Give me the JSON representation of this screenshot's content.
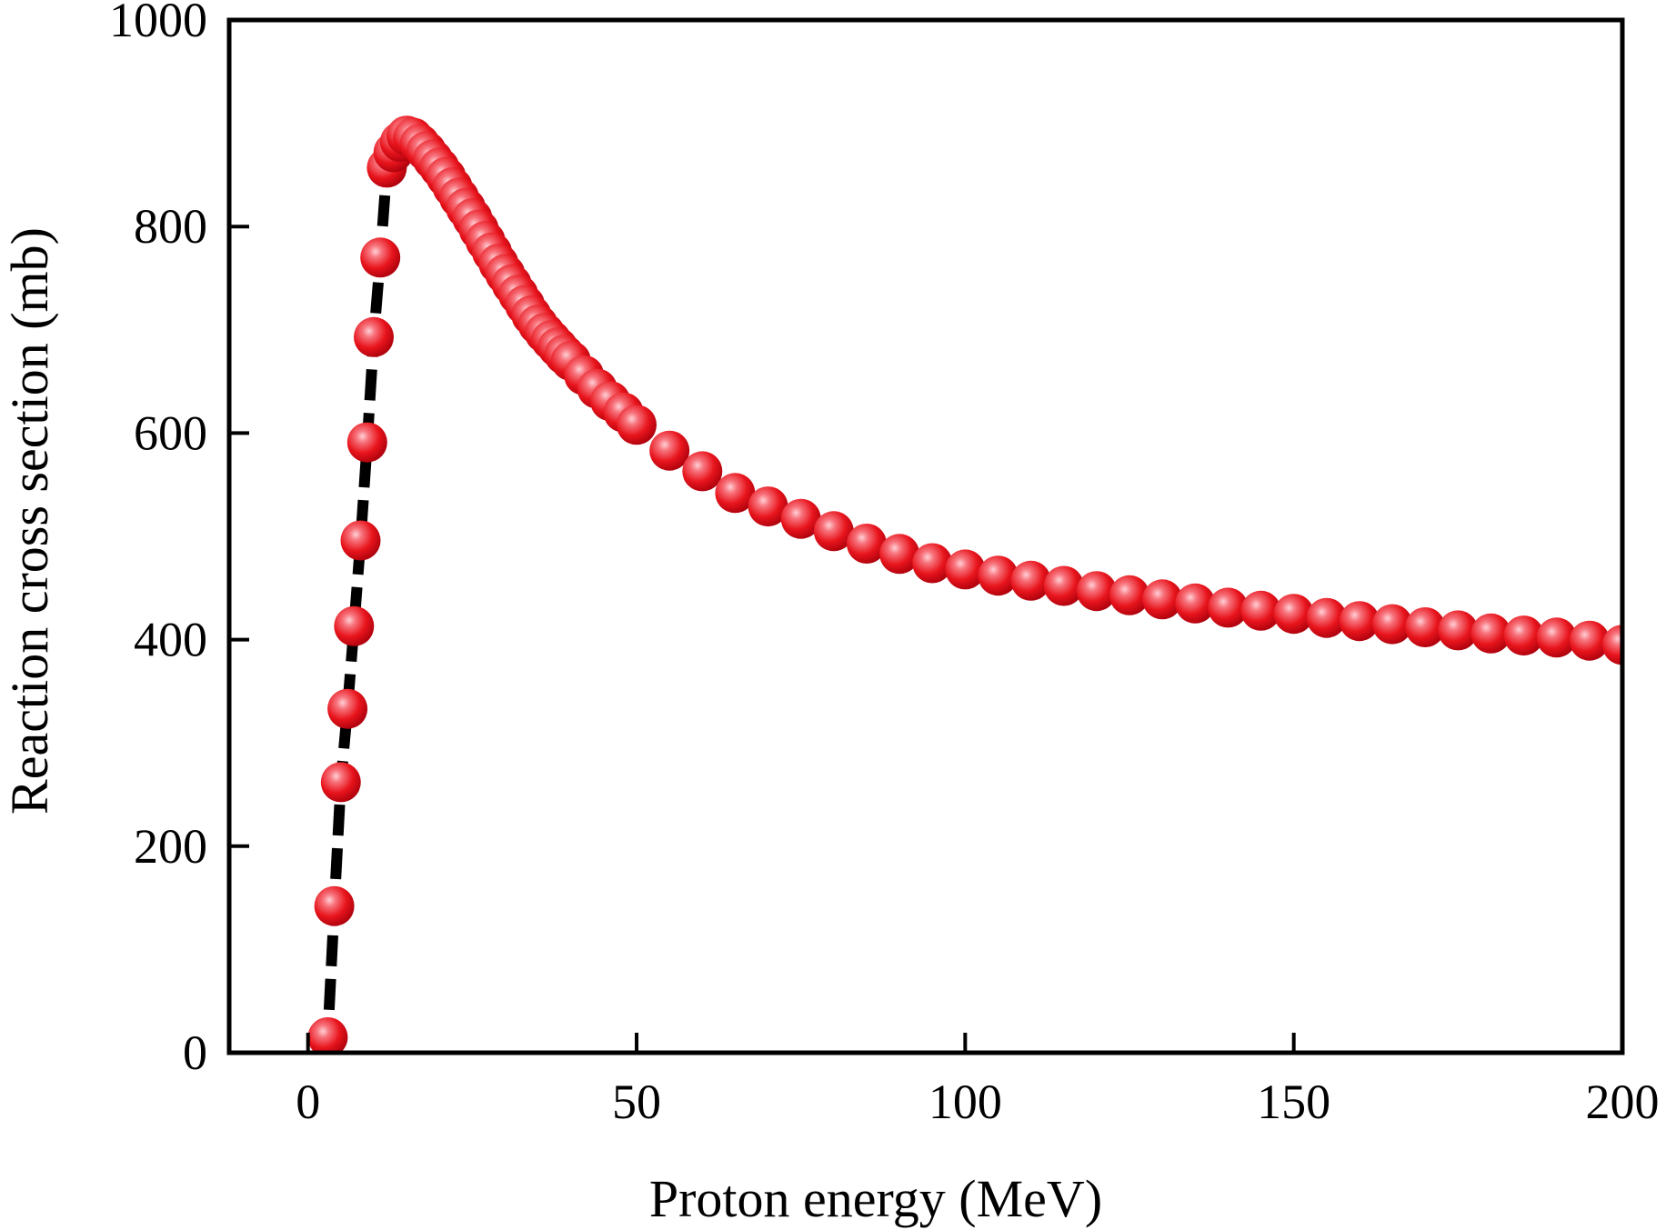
{
  "chart_data": {
    "type": "scatter",
    "title": "",
    "xlabel": "Proton energy (MeV)",
    "ylabel": "Reaction cross section (mb)",
    "xlim": [
      -12,
      200
    ],
    "ylim": [
      0,
      1000
    ],
    "xticks": [
      0,
      50,
      100,
      150,
      200
    ],
    "yticks": [
      0,
      200,
      400,
      600,
      800,
      1000
    ],
    "xtick_labels": [
      "0",
      "50",
      "100",
      "150",
      "200"
    ],
    "ytick_labels": [
      "0",
      "200",
      "400",
      "600",
      "800",
      "1000"
    ],
    "grid": false,
    "legend": "none",
    "colors": {
      "marker": "#e8141c",
      "marker_highlight": "#ffd0d6",
      "curve": "#000000"
    },
    "series": [
      {
        "style": "markers",
        "x": [
          3,
          4,
          5,
          6,
          7,
          8,
          9,
          10,
          11,
          12,
          13,
          14,
          15,
          16,
          17,
          18,
          19,
          20,
          21,
          22,
          23,
          24,
          25,
          26,
          27,
          28,
          29,
          30,
          31,
          32,
          33,
          34,
          35,
          36,
          37,
          38,
          39,
          40,
          42,
          44,
          46,
          48,
          50,
          55,
          60,
          65,
          70,
          75,
          80,
          85,
          90,
          95,
          100,
          105,
          110,
          115,
          120,
          125,
          130,
          135,
          140,
          145,
          150,
          155,
          160,
          165,
          170,
          175,
          180,
          185,
          190,
          195,
          200
        ],
        "y": [
          15,
          142,
          262,
          333,
          413,
          496,
          591,
          693,
          770,
          857,
          872,
          882,
          888,
          886,
          880,
          873,
          865,
          857,
          848,
          838,
          828,
          818,
          808,
          797,
          786,
          775,
          764,
          754,
          744,
          734,
          724,
          714,
          705,
          697,
          690,
          683,
          676,
          670,
          656,
          643,
          631,
          620,
          608,
          583,
          563,
          542,
          529,
          517,
          505,
          493,
          483,
          474,
          468,
          462,
          457,
          452,
          447,
          443,
          439,
          435,
          431,
          428,
          425,
          421,
          418,
          415,
          412,
          409,
          406,
          404,
          402,
          399,
          395
        ]
      },
      {
        "style": "dashed-line",
        "x": [
          2.3,
          3,
          4,
          5,
          6,
          7,
          8,
          9,
          10,
          11,
          12,
          13,
          14,
          15,
          16,
          17,
          18,
          20,
          22,
          24,
          26,
          28,
          30,
          33,
          36,
          40
        ],
        "y": [
          0,
          15,
          142,
          262,
          333,
          413,
          496,
          591,
          693,
          770,
          857,
          872,
          882,
          888,
          886,
          880,
          873,
          857,
          838,
          818,
          797,
          775,
          754,
          724,
          697,
          670
        ]
      }
    ]
  }
}
